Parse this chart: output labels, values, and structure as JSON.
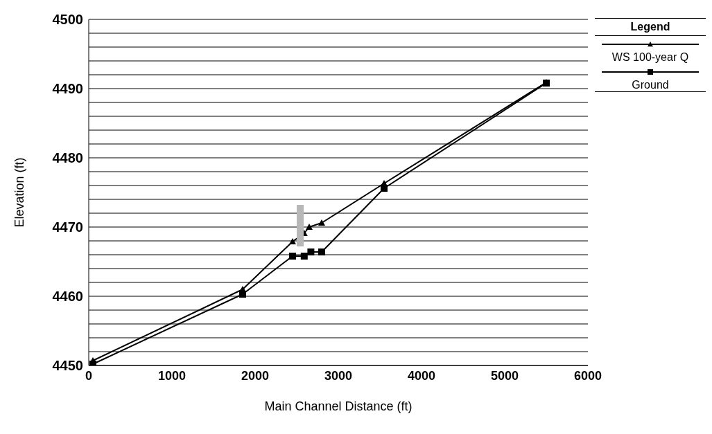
{
  "chart_data": {
    "type": "line",
    "xlabel": "Main Channel Distance (ft)",
    "ylabel": "Elevation (ft)",
    "legend_title": "Legend",
    "xlim": [
      0,
      6000
    ],
    "xticks": [
      0,
      1000,
      2000,
      3000,
      4000,
      5000,
      6000
    ],
    "ylim": [
      4450,
      4500
    ],
    "yticks": [
      4450,
      {
        "value": 4452,
        "label": null
      },
      {
        "value": 4454,
        "label": null
      },
      {
        "value": 4456,
        "label": null
      },
      {
        "value": 4458,
        "label": null
      },
      4460,
      {
        "value": 4462,
        "label": null
      },
      {
        "value": 4464,
        "label": null
      },
      {
        "value": 4466,
        "label": null
      },
      {
        "value": 4468,
        "label": null
      },
      4470,
      {
        "value": 4472,
        "label": null
      },
      {
        "value": 4474,
        "label": null
      },
      {
        "value": 4476,
        "label": null
      },
      {
        "value": 4478,
        "label": null
      },
      4480,
      {
        "value": 4482,
        "label": null
      },
      {
        "value": 4484,
        "label": null
      },
      {
        "value": 4486,
        "label": null
      },
      {
        "value": 4488,
        "label": null
      },
      4490,
      {
        "value": 4492,
        "label": null
      },
      {
        "value": 4494,
        "label": null
      },
      {
        "value": 4496,
        "label": null
      },
      {
        "value": 4498,
        "label": null
      },
      4500
    ],
    "grid": "y",
    "legend": "top right",
    "line_style": "solid",
    "series": [
      {
        "name": "WS 100-year Q",
        "color": "#000000",
        "marker": "triangle",
        "x": [
          50,
          1850,
          2450,
          2590,
          2650,
          2800,
          3550,
          5500
        ],
        "values": [
          4450.7,
          4461.0,
          4467.9,
          4469.1,
          4470.0,
          4470.6,
          4476.3,
          4490.9
        ]
      },
      {
        "name": "Ground",
        "color": "#000000",
        "marker": "square",
        "x": [
          50,
          1850,
          2450,
          2590,
          2670,
          2800,
          3550,
          5500
        ],
        "values": [
          4450.2,
          4460.3,
          4465.8,
          4465.8,
          4466.4,
          4466.4,
          4475.6,
          4490.8
        ]
      }
    ]
  }
}
